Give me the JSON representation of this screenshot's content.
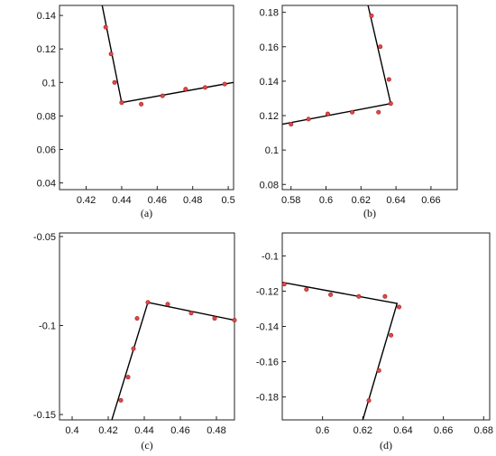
{
  "chart_data": [
    {
      "type": "scatter",
      "caption": "(a)",
      "xlim": [
        0.405,
        0.503
      ],
      "ylim": [
        0.036,
        0.146
      ],
      "xticks": [
        "0.42",
        "0.44",
        "0.46",
        "0.48",
        "0.5"
      ],
      "yticks": [
        "0.04",
        "0.06",
        "0.08",
        "0.1",
        "0.12",
        "0.14"
      ],
      "points": [
        {
          "x": 0.431,
          "y": 0.133
        },
        {
          "x": 0.434,
          "y": 0.117
        },
        {
          "x": 0.436,
          "y": 0.1
        },
        {
          "x": 0.44,
          "y": 0.088
        },
        {
          "x": 0.451,
          "y": 0.087
        },
        {
          "x": 0.463,
          "y": 0.092
        },
        {
          "x": 0.476,
          "y": 0.096
        },
        {
          "x": 0.487,
          "y": 0.097
        },
        {
          "x": 0.498,
          "y": 0.099
        }
      ],
      "fit_line": [
        {
          "x": 0.429,
          "y": 0.146
        },
        {
          "x": 0.44,
          "y": 0.088
        },
        {
          "x": 0.503,
          "y": 0.1
        }
      ]
    },
    {
      "type": "scatter",
      "caption": "(b)",
      "xlim": [
        0.575,
        0.675
      ],
      "ylim": [
        0.077,
        0.184
      ],
      "xticks": [
        "0.58",
        "0.6",
        "0.62",
        "0.64",
        "0.66"
      ],
      "yticks": [
        "0.08",
        "0.1",
        "0.12",
        "0.14",
        "0.16",
        "0.18"
      ],
      "points": [
        {
          "x": 0.58,
          "y": 0.115
        },
        {
          "x": 0.59,
          "y": 0.118
        },
        {
          "x": 0.601,
          "y": 0.121
        },
        {
          "x": 0.615,
          "y": 0.122
        },
        {
          "x": 0.63,
          "y": 0.122
        },
        {
          "x": 0.626,
          "y": 0.178
        },
        {
          "x": 0.631,
          "y": 0.16
        },
        {
          "x": 0.636,
          "y": 0.141
        },
        {
          "x": 0.637,
          "y": 0.127
        }
      ],
      "fit_line": [
        {
          "x": 0.575,
          "y": 0.115
        },
        {
          "x": 0.637,
          "y": 0.127
        },
        {
          "x": 0.624,
          "y": 0.184
        }
      ]
    },
    {
      "type": "scatter",
      "caption": "(c)",
      "xlim": [
        0.393,
        0.49
      ],
      "ylim": [
        -0.153,
        -0.048
      ],
      "xticks": [
        "0.4",
        "0.42",
        "0.44",
        "0.46",
        "0.48"
      ],
      "yticks": [
        "-0.15",
        "-0.1",
        "-0.05"
      ],
      "points": [
        {
          "x": 0.427,
          "y": -0.142
        },
        {
          "x": 0.431,
          "y": -0.129
        },
        {
          "x": 0.434,
          "y": -0.113
        },
        {
          "x": 0.436,
          "y": -0.096
        },
        {
          "x": 0.442,
          "y": -0.087
        },
        {
          "x": 0.453,
          "y": -0.088
        },
        {
          "x": 0.466,
          "y": -0.093
        },
        {
          "x": 0.479,
          "y": -0.096
        },
        {
          "x": 0.49,
          "y": -0.097
        }
      ],
      "fit_line": [
        {
          "x": 0.422,
          "y": -0.153
        },
        {
          "x": 0.442,
          "y": -0.087
        },
        {
          "x": 0.49,
          "y": -0.097
        }
      ]
    },
    {
      "type": "scatter",
      "caption": "(d)",
      "xlim": [
        0.58,
        0.683
      ],
      "ylim": [
        -0.193,
        -0.087
      ],
      "xticks": [
        "0.6",
        "0.62",
        "0.64",
        "0.66",
        "0.68"
      ],
      "yticks": [
        "-0.1",
        "-0.12",
        "-0.14",
        "-0.16",
        "-0.18"
      ],
      "points": [
        {
          "x": 0.581,
          "y": -0.116
        },
        {
          "x": 0.592,
          "y": -0.119
        },
        {
          "x": 0.604,
          "y": -0.122
        },
        {
          "x": 0.618,
          "y": -0.123
        },
        {
          "x": 0.631,
          "y": -0.123
        },
        {
          "x": 0.638,
          "y": -0.129
        },
        {
          "x": 0.634,
          "y": -0.145
        },
        {
          "x": 0.628,
          "y": -0.165
        },
        {
          "x": 0.623,
          "y": -0.182
        }
      ],
      "fit_line": [
        {
          "x": 0.58,
          "y": -0.115
        },
        {
          "x": 0.637,
          "y": -0.127
        },
        {
          "x": 0.62,
          "y": -0.193
        }
      ]
    }
  ]
}
